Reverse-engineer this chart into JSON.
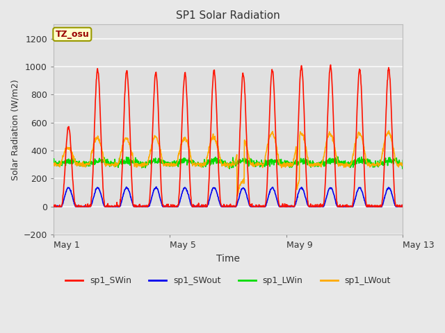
{
  "title": "SP1 Solar Radiation",
  "xlabel": "Time",
  "ylabel": "Solar Radiation (W/m2)",
  "ylim": [
    -200,
    1300
  ],
  "yticks": [
    -200,
    0,
    200,
    400,
    600,
    800,
    1000,
    1200
  ],
  "background_color": "#e8e8e8",
  "plot_bg_color": "#e0e0e0",
  "grid_color": "#f5f5f5",
  "series_colors": {
    "sp1_SWin": "#ff1100",
    "sp1_SWout": "#0000ee",
    "sp1_LWin": "#00dd00",
    "sp1_LWout": "#ffaa00"
  },
  "annotation_text": "TZ_osu",
  "annotation_bg": "#ffffcc",
  "annotation_border": "#999900",
  "annotation_fg": "#990000",
  "x_tick_positions": [
    0,
    4,
    8,
    12
  ],
  "x_tick_labels": [
    "May 1",
    "May 5",
    "May 9",
    "May 13"
  ],
  "figsize": [
    6.4,
    4.8
  ],
  "dpi": 100
}
